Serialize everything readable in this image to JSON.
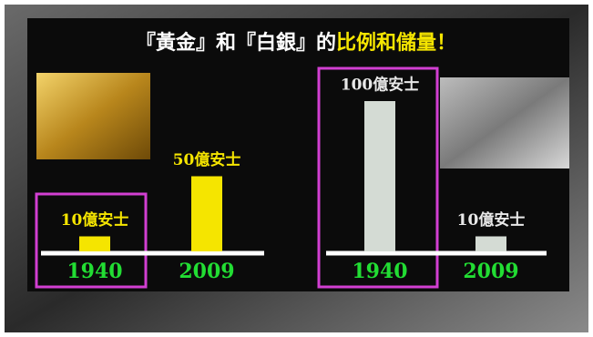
{
  "title": [
    "『黃金』和『白銀』的",
    "比例和儲量！"
  ],
  "chart_data": [
    {
      "type": "bar",
      "categories": [
        "1940",
        "2009"
      ],
      "values": [
        10,
        50
      ],
      "value_labels": [
        "10億安士",
        "50億安士"
      ],
      "color": "#f5e500",
      "label_color": "#f5e500"
    },
    {
      "type": "bar",
      "categories": [
        "1940",
        "2009"
      ],
      "values": [
        100,
        10
      ],
      "value_labels": [
        "100億安士",
        "10億安士"
      ],
      "color": "#d4dbd4",
      "label_color": "#e8e8e8"
    }
  ]
}
